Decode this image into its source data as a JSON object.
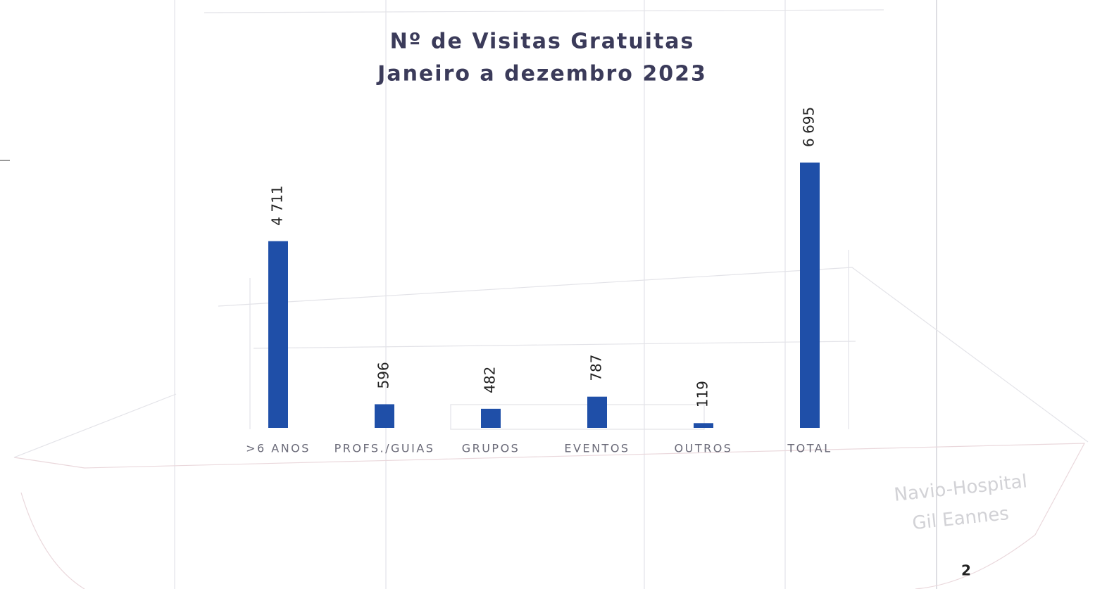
{
  "chart_data": {
    "type": "bar",
    "title": "Nº de Visitas Gratuitas",
    "subtitle": "Janeiro a dezembro 2023",
    "categories": [
      ">6 ANOS",
      "PROFS./GUIAS",
      "GRUPOS",
      "EVENTOS",
      "OUTROS",
      "TOTAL"
    ],
    "values": [
      4711,
      596,
      482,
      787,
      119,
      6695
    ],
    "value_labels": [
      "4 711",
      "596",
      "482",
      "787",
      "119",
      "6 695"
    ],
    "color": "#1f4fa8"
  },
  "watermark": [
    "Navio-Hospital",
    "Gil Eannes"
  ],
  "page_number": "2"
}
